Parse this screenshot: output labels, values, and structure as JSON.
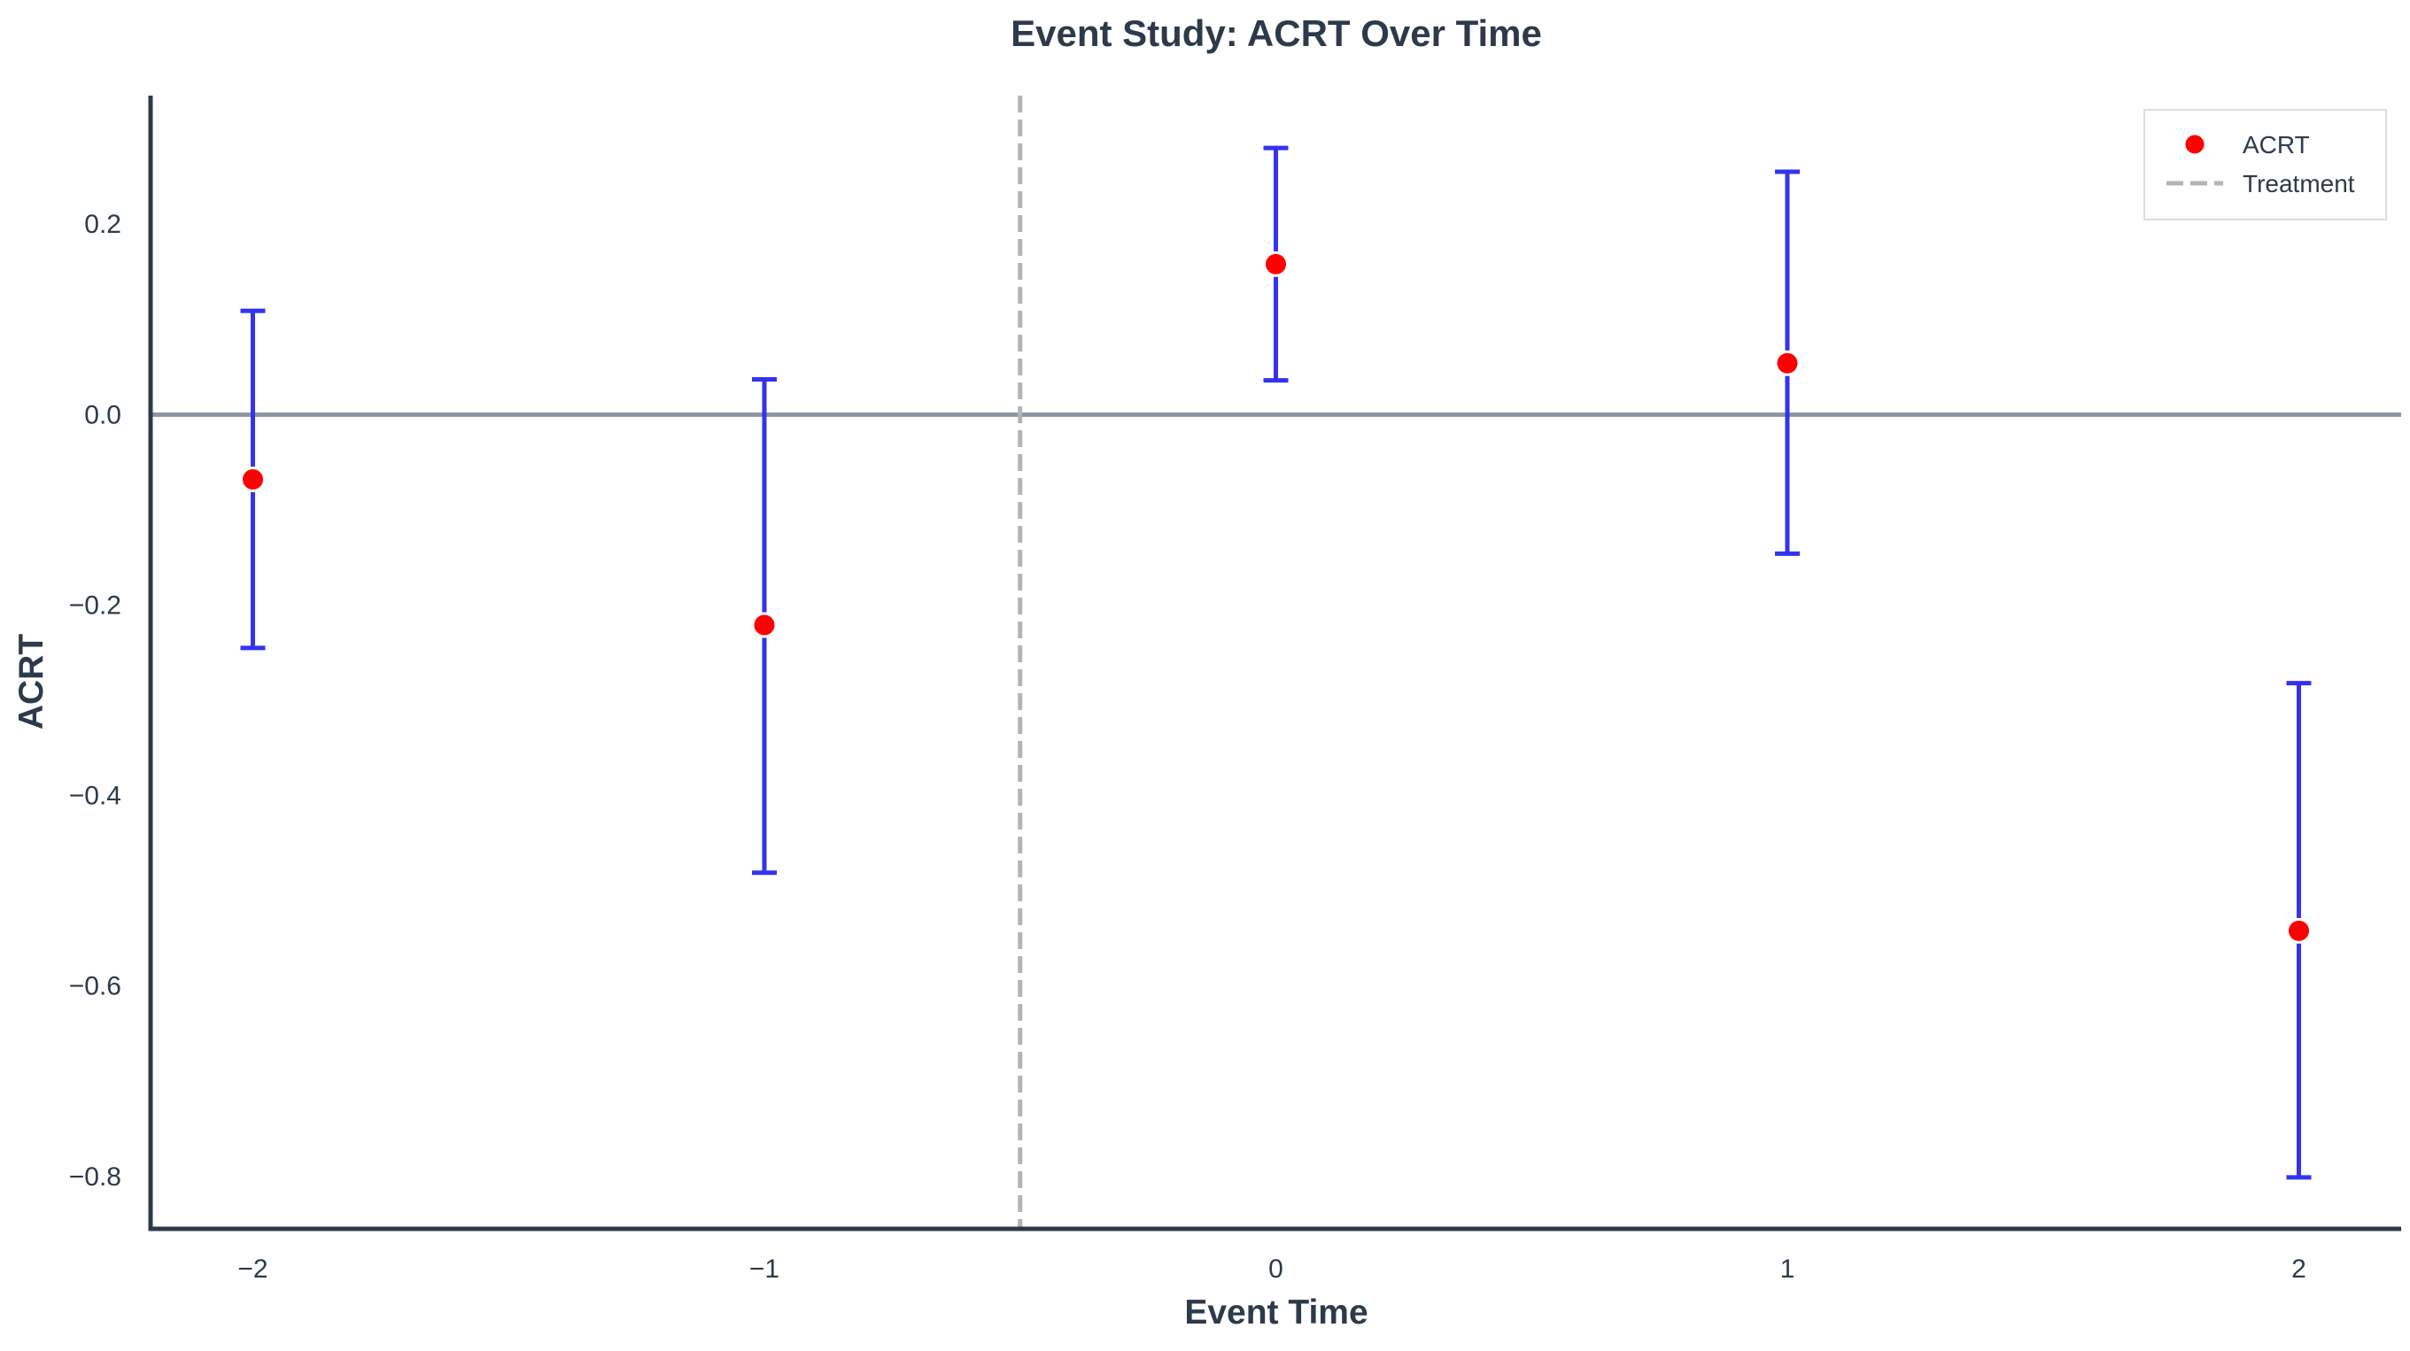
{
  "chart_data": {
    "type": "scatter",
    "title": "Event Study: ACRT Over Time",
    "xlabel": "Event Time",
    "ylabel": "ACRT",
    "x": [
      -2,
      -1,
      0,
      1,
      2
    ],
    "x_tick_labels": [
      "−2",
      "−1",
      "0",
      "1",
      "2"
    ],
    "xlim": [
      -2.2,
      2.2
    ],
    "ylim": [
      -0.855,
      0.335
    ],
    "y_ticks": [
      0.2,
      0.0,
      -0.2,
      -0.4,
      -0.6,
      -0.8
    ],
    "y_tick_labels": [
      "0.2",
      "0.0",
      "−0.2",
      "−0.4",
      "−0.6",
      "−0.8"
    ],
    "series": [
      {
        "name": "ACRT",
        "values": [
          -0.068,
          -0.221,
          0.158,
          0.054,
          -0.542
        ],
        "ci_lower": [
          -0.245,
          -0.481,
          0.036,
          -0.146,
          -0.801
        ],
        "ci_upper": [
          0.109,
          0.037,
          0.28,
          0.255,
          -0.282
        ],
        "marker_color": "#ff0000",
        "errorbar_color": "#3333ee"
      }
    ],
    "reference_lines": [
      {
        "orientation": "horizontal",
        "value": 0.0,
        "color": "#8d96a0",
        "style": "solid"
      },
      {
        "orientation": "vertical",
        "value": -0.5,
        "color": "#b4b4b4",
        "style": "dashed",
        "name": "Treatment"
      }
    ],
    "legend": {
      "placement": "top-right",
      "entries": [
        {
          "label": "ACRT",
          "kind": "marker",
          "color": "#ff0000"
        },
        {
          "label": "Treatment",
          "kind": "dashed-line",
          "color": "#b4b4b4"
        }
      ]
    },
    "grid": false,
    "axis_color": "#2d3a4a"
  }
}
